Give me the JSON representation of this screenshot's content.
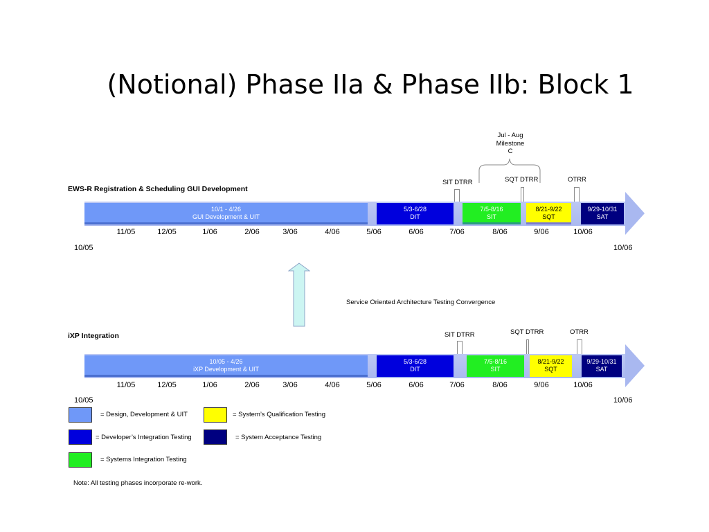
{
  "title": "(Notional) Phase IIa & Phase IIb: Block 1",
  "colors": {
    "design": "#6f98f8",
    "dit": "#0000dd",
    "sit": "#22ee22",
    "sqt": "#ffff00",
    "sat": "#000080",
    "band": "#a9b8f0"
  },
  "milestone": {
    "line1": "Jul - Aug",
    "line2": "Milestone",
    "line3": "C"
  },
  "timelines": [
    {
      "label": "EWS-R Registration & Scheduling GUI Development",
      "gates": {
        "sit_dtrr": "SIT DTRR",
        "sqt_dtrr": "SQT DTRR",
        "otrr": "OTRR"
      },
      "segments": [
        {
          "line1": "10/1 - 4/26",
          "line2": "GUI Development & UIT"
        },
        {
          "line1": "5/3-6/28",
          "line2": "DIT"
        },
        {
          "line1": "7/5-8/16",
          "line2": "SIT"
        },
        {
          "line1": "8/21-9/22",
          "line2": "SQT"
        },
        {
          "line1": "9/29-10/31",
          "line2": "SAT"
        }
      ],
      "ticks": [
        "11/05",
        "12/05",
        "1/06",
        "2/06",
        "3/06",
        "4/06",
        "5/06",
        "6/06",
        "7/06",
        "8/06",
        "9/06",
        "10/06"
      ],
      "start": "10/05",
      "end": "10/06"
    },
    {
      "label": "iXP Integration",
      "gates": {
        "sit_dtrr": "SIT DTRR",
        "sqt_dtrr": "SQT DTRR",
        "otrr": "OTRR"
      },
      "segments": [
        {
          "line1": "10/05 - 4/26",
          "line2": "iXP Development & UIT"
        },
        {
          "line1": "5/3-6/28",
          "line2": "DIT"
        },
        {
          "line1": "7/5-8/16",
          "line2": "SIT"
        },
        {
          "line1": "8/21-9/22",
          "line2": "SQT"
        },
        {
          "line1": "9/29-10/31",
          "line2": "SAT"
        }
      ],
      "ticks": [
        "11/05",
        "12/05",
        "1/06",
        "2/06",
        "3/06",
        "4/06",
        "5/06",
        "6/06",
        "7/06",
        "8/06",
        "9/06",
        "10/06"
      ],
      "start": "10/05",
      "end": "10/06"
    }
  ],
  "convergence": "Service Oriented Architecture Testing Convergence",
  "legend": [
    {
      "text": "= Design, Development & UIT"
    },
    {
      "text": "= System’s Qualification Testing"
    },
    {
      "text": "= Developer’s Integration Testing"
    },
    {
      "text": "= System Acceptance Testing"
    },
    {
      "text": "= Systems Integration Testing"
    }
  ],
  "note": "Note: All testing phases incorporate re-work."
}
